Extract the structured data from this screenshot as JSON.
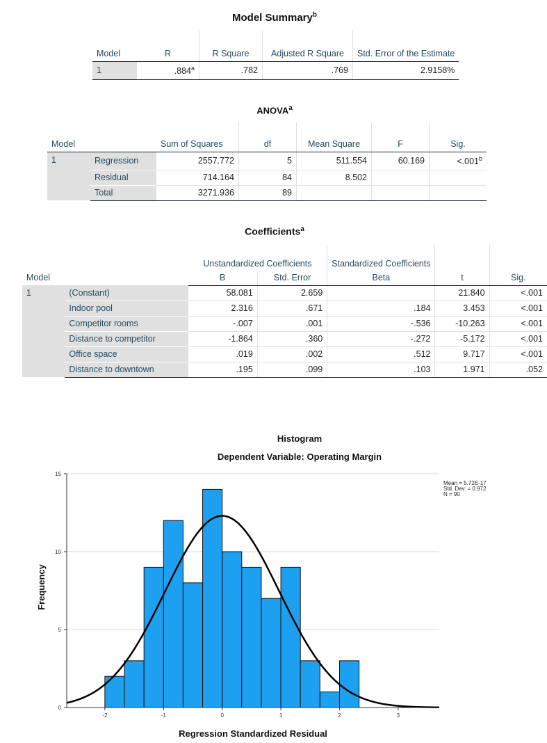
{
  "model_summary": {
    "title": "Model Summary",
    "title_sup": "b",
    "headers": [
      "Model",
      "R",
      "R Square",
      "Adjusted R Square",
      "Std. Error of the Estimate"
    ],
    "row": {
      "model": "1",
      "r": ".884",
      "r_sup": "a",
      "r_square": ".782",
      "adj_r_square": ".769",
      "std_error": "2.9158%"
    }
  },
  "anova": {
    "title": "ANOVA",
    "title_sup": "a",
    "headers": {
      "model": "Model",
      "sum_of_squares": "Sum of Squares",
      "df": "df",
      "mean_square": "Mean Square",
      "f": "F",
      "sig": "Sig."
    },
    "model_num": "1",
    "rows": [
      {
        "source": "Regression",
        "ss": "2557.772",
        "df": "5",
        "ms": "511.554",
        "f": "60.169",
        "sig": "<.001",
        "sig_sup": "b"
      },
      {
        "source": "Residual",
        "ss": "714.164",
        "df": "84",
        "ms": "8.502",
        "f": "",
        "sig": "",
        "sig_sup": ""
      },
      {
        "source": "Total",
        "ss": "3271.936",
        "df": "89",
        "ms": "",
        "f": "",
        "sig": "",
        "sig_sup": ""
      }
    ]
  },
  "coefficients": {
    "title": "Coefficients",
    "title_sup": "a",
    "group_headers": {
      "unstd": "Unstandardized Coefficients",
      "std": "Standardized Coefficients"
    },
    "headers": {
      "model": "Model",
      "b": "B",
      "std_error": "Std. Error",
      "beta": "Beta",
      "t": "t",
      "sig": "Sig."
    },
    "model_num": "1",
    "rows": [
      {
        "name": "(Constant)",
        "b": "58.081",
        "se": "2.659",
        "beta": "",
        "t": "21.840",
        "sig": "<.001"
      },
      {
        "name": "Indoor pool",
        "b": "2.316",
        "se": ".671",
        "beta": ".184",
        "t": "3.453",
        "sig": "<.001"
      },
      {
        "name": "Competitor rooms",
        "b": "-.007",
        "se": ".001",
        "beta": "-.536",
        "t": "-10.263",
        "sig": "<.001"
      },
      {
        "name": "Distance to competitor",
        "b": "-1.864",
        "se": ".360",
        "beta": "-.272",
        "t": "-5.172",
        "sig": "<.001"
      },
      {
        "name": "Office space",
        "b": ".019",
        "se": ".002",
        "beta": ".512",
        "t": "9.717",
        "sig": "<.001"
      },
      {
        "name": "Distance to downtown",
        "b": ".195",
        "se": ".099",
        "beta": ".103",
        "t": "1.971",
        "sig": ".052"
      }
    ]
  },
  "chart_data": {
    "type": "bar",
    "title": "Histogram",
    "subtitle": "Dependent Variable: Operating Margin",
    "xlabel": "Regression Standardized Residual",
    "ylabel": "Frequency",
    "bin_width": 0.333,
    "bin_starts": [
      -2.0,
      -1.667,
      -1.333,
      -1.0,
      -0.667,
      -0.333,
      0.0,
      0.333,
      0.667,
      1.0,
      1.333,
      1.667,
      2.0
    ],
    "values": [
      2,
      3,
      9,
      12,
      8,
      14,
      10,
      9,
      7,
      9,
      3,
      1,
      3
    ],
    "xlim": [
      -2.65,
      3.7
    ],
    "ylim": [
      0,
      15
    ],
    "x_ticks": [
      -2,
      -1,
      0,
      1,
      2,
      3
    ],
    "y_ticks": [
      0,
      5,
      10,
      15
    ],
    "normal_curve": {
      "mean": 0.0,
      "std": 0.972,
      "n": 90
    },
    "legend": {
      "mean": "Mean = 5.72E-17",
      "std": "Std. Dev. = 0.972",
      "n": "N = 90"
    },
    "bar_color": "#1ea0f0",
    "curve_color": "#000000"
  }
}
